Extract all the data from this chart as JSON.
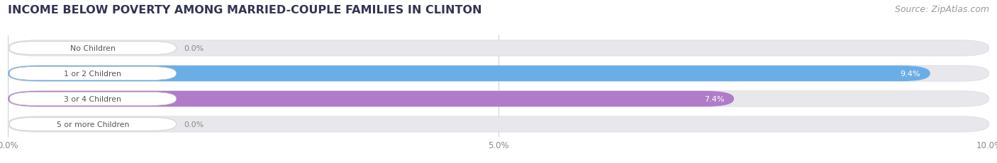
{
  "title": "INCOME BELOW POVERTY AMONG MARRIED-COUPLE FAMILIES IN CLINTON",
  "source": "Source: ZipAtlas.com",
  "categories": [
    "No Children",
    "1 or 2 Children",
    "3 or 4 Children",
    "5 or more Children"
  ],
  "values": [
    0.0,
    9.4,
    7.4,
    0.0
  ],
  "bar_colors": [
    "#f2a0a8",
    "#6aaee8",
    "#b07cca",
    "#6dcdc8"
  ],
  "xlim": [
    0,
    10.0
  ],
  "xticks": [
    0.0,
    5.0,
    10.0
  ],
  "xticklabels": [
    "0.0%",
    "5.0%",
    "10.0%"
  ],
  "background_color": "#ffffff",
  "bar_bg_color": "#e8e8ec",
  "label_text_color": "#555555",
  "title_fontsize": 11.5,
  "source_fontsize": 9,
  "bar_height": 0.62,
  "title_color": "#333355",
  "source_color": "#999999",
  "grid_color": "#d0d0d8",
  "val_label_color_inside": "#ffffff",
  "val_label_color_outside": "#888888"
}
